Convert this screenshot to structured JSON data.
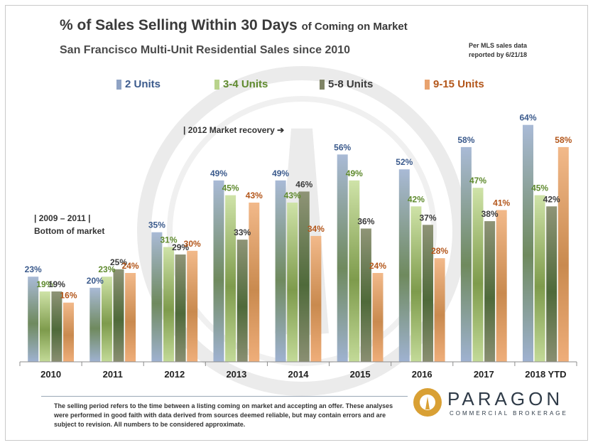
{
  "header": {
    "title": "% of Sales Selling Within 30 Days",
    "title_suffix": "of Coming on Market",
    "subtitle": "San Francisco Multi-Unit  Residential Sales since 2010",
    "source_line1": "Per MLS sales data",
    "source_line2": "reported  by 6/21/18"
  },
  "annotations": {
    "recovery": "|  2012  Market recovery ➔",
    "bottom_line1": "| 2009 – 2011 |",
    "bottom_line2": "Bottom  of market"
  },
  "footer": {
    "note": "The selling period refers to the time between a listing coming on market and accepting an offer. These analyses were performed in good faith with data derived from sources deemed reliable, but may contain errors and are subject to revision.  All numbers to be considered  approximate.",
    "brand_name": "PARAGON",
    "brand_tagline": "COMMERCIAL BROKERAGE"
  },
  "colors": {
    "bar_2_units": "#8fa3c4",
    "bar_3_4_units": "#b9d38c",
    "bar_5_8_units": "#7f8465",
    "bar_9_15_units": "#e8a26e",
    "label_2_units": "#3b5a8c",
    "label_3_4_units": "#5f8a2e",
    "label_5_8_units": "#3a3a3a",
    "label_9_15_units": "#b3561a",
    "watermark": "#ebebeb",
    "brand": "#d9a034"
  },
  "chart_data": {
    "type": "bar",
    "categories": [
      "2010",
      "2011",
      "2012",
      "2013",
      "2014",
      "2015",
      "2016",
      "2017",
      "2018 YTD"
    ],
    "series": [
      {
        "name": "2 Units",
        "values": [
          23,
          20,
          35,
          49,
          49,
          56,
          52,
          58,
          64
        ]
      },
      {
        "name": "3-4 Units",
        "values": [
          19,
          23,
          31,
          45,
          43,
          49,
          42,
          47,
          45
        ]
      },
      {
        "name": "5-8 Units",
        "values": [
          19,
          25,
          29,
          33,
          46,
          36,
          37,
          38,
          42
        ]
      },
      {
        "name": "9-15 Units",
        "values": [
          16,
          24,
          30,
          43,
          34,
          24,
          28,
          41,
          58
        ]
      }
    ],
    "value_suffix": "%",
    "ylim": [
      0,
      72
    ],
    "grid": false,
    "legend_position": "top"
  }
}
